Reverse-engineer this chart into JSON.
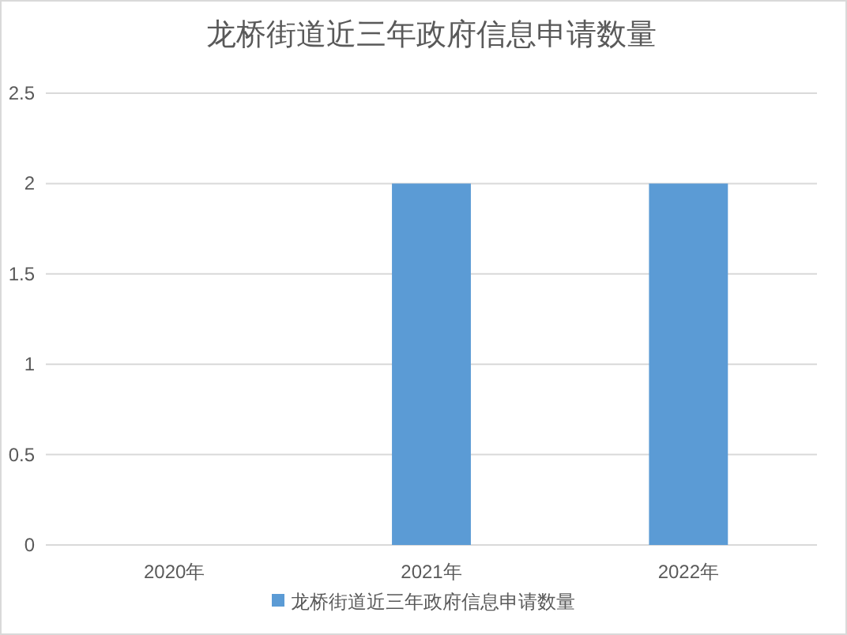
{
  "chart_data": {
    "type": "bar",
    "title": "龙桥街道近三年政府信息申请数量",
    "categories": [
      "2020年",
      "2021年",
      "2022年"
    ],
    "series": [
      {
        "name": "龙桥街道近三年政府信息申请数量",
        "color": "#5b9bd5",
        "values": [
          0,
          2,
          2
        ]
      }
    ],
    "ylim": [
      0,
      2.5
    ],
    "yticks": [
      0,
      0.5,
      1,
      1.5,
      2,
      2.5
    ],
    "grid": "y",
    "legend": "bottom"
  }
}
